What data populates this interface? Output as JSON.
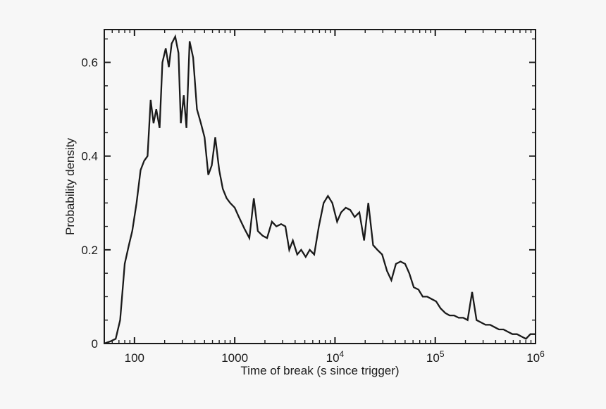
{
  "chart_data": {
    "type": "line",
    "title": "",
    "xlabel": "Time of break (s since trigger)",
    "ylabel": "Probability density",
    "x_scale": "log",
    "y_scale": "linear",
    "xlim": [
      50,
      1000000
    ],
    "ylim": [
      0,
      0.67
    ],
    "grid": false,
    "legend": "none",
    "frame": "box-with-inward-ticks",
    "line_color": "#1a1a1a",
    "background_color": "#f7f7f7",
    "x_major_ticks": [
      {
        "value": 100,
        "label": "100"
      },
      {
        "value": 1000,
        "label": "1000"
      },
      {
        "value": 10000,
        "base": "10",
        "exp": "4"
      },
      {
        "value": 100000,
        "base": "10",
        "exp": "5"
      },
      {
        "value": 1000000,
        "base": "10",
        "exp": "6"
      }
    ],
    "y_major_ticks": [
      {
        "value": 0,
        "label": "0"
      },
      {
        "value": 0.2,
        "label": "0.2"
      },
      {
        "value": 0.4,
        "label": "0.4"
      },
      {
        "value": 0.6,
        "label": "0.6"
      }
    ],
    "y_minor_step": 0.05,
    "series": [
      {
        "name": "probability-density",
        "x": [
          50,
          58,
          65,
          72,
          80,
          88,
          95,
          105,
          115,
          125,
          135,
          145,
          155,
          165,
          178,
          190,
          205,
          220,
          235,
          255,
          275,
          290,
          310,
          330,
          355,
          385,
          420,
          460,
          500,
          545,
          590,
          640,
          700,
          760,
          830,
          900,
          1000,
          1100,
          1250,
          1400,
          1550,
          1700,
          1900,
          2100,
          2350,
          2600,
          2900,
          3200,
          3500,
          3800,
          4200,
          4600,
          5100,
          5600,
          6200,
          6900,
          7700,
          8500,
          9400,
          10500,
          11500,
          12800,
          14200,
          15700,
          17500,
          19500,
          21500,
          24000,
          26500,
          29500,
          33000,
          36500,
          40500,
          45000,
          50000,
          55000,
          61000,
          68000,
          75000,
          83000,
          92000,
          102000,
          113000,
          126000,
          139000,
          154000,
          171000,
          190000,
          210000,
          233000,
          258000,
          286000,
          317000,
          352000,
          390000,
          432000,
          479000,
          531000,
          589000,
          653000,
          724000,
          802000,
          889000,
          986000
        ],
        "y": [
          0.0,
          0.005,
          0.01,
          0.05,
          0.17,
          0.21,
          0.24,
          0.3,
          0.37,
          0.39,
          0.4,
          0.52,
          0.47,
          0.5,
          0.46,
          0.6,
          0.63,
          0.59,
          0.64,
          0.655,
          0.62,
          0.47,
          0.53,
          0.46,
          0.645,
          0.61,
          0.5,
          0.47,
          0.44,
          0.36,
          0.38,
          0.44,
          0.37,
          0.33,
          0.31,
          0.3,
          0.29,
          0.27,
          0.245,
          0.225,
          0.31,
          0.24,
          0.23,
          0.225,
          0.26,
          0.25,
          0.255,
          0.25,
          0.2,
          0.22,
          0.19,
          0.2,
          0.185,
          0.2,
          0.19,
          0.25,
          0.3,
          0.315,
          0.3,
          0.26,
          0.28,
          0.29,
          0.285,
          0.27,
          0.28,
          0.22,
          0.3,
          0.21,
          0.2,
          0.19,
          0.155,
          0.135,
          0.17,
          0.175,
          0.17,
          0.15,
          0.12,
          0.115,
          0.1,
          0.1,
          0.095,
          0.09,
          0.075,
          0.065,
          0.06,
          0.06,
          0.055,
          0.055,
          0.05,
          0.11,
          0.05,
          0.045,
          0.04,
          0.04,
          0.035,
          0.03,
          0.03,
          0.025,
          0.02,
          0.02,
          0.015,
          0.01,
          0.02,
          0.02
        ]
      }
    ]
  }
}
